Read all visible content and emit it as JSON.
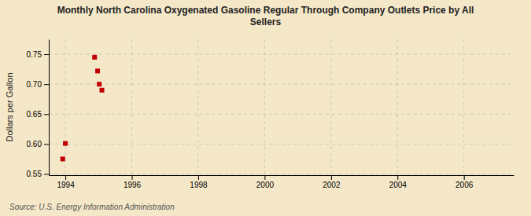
{
  "chart_data": {
    "type": "scatter",
    "title": "Monthly North Carolina Oxygenated Gasoline Regular Through Company Outlets Price by All\nSellers",
    "ylabel": "Dollars per Gallon",
    "source": "Source: U.S. Energy Information Administration",
    "x": [
      1993.92,
      1994.0,
      1994.88,
      1994.97,
      1995.02,
      1995.1
    ],
    "values": [
      0.575,
      0.601,
      0.745,
      0.722,
      0.7,
      0.69
    ],
    "color": "#c00000",
    "marker": "square",
    "xlim": [
      1993.5,
      2007.5
    ],
    "ylim": [
      0.548,
      0.775
    ],
    "xticks": [
      1994,
      1996,
      1998,
      2000,
      2002,
      2004,
      2006
    ],
    "yticks": [
      0.55,
      {
        "value": 0.6,
        "label": "0.60"
      },
      0.65,
      {
        "value": 0.7,
        "label": "0.70"
      },
      0.75
    ],
    "grid": true
  }
}
